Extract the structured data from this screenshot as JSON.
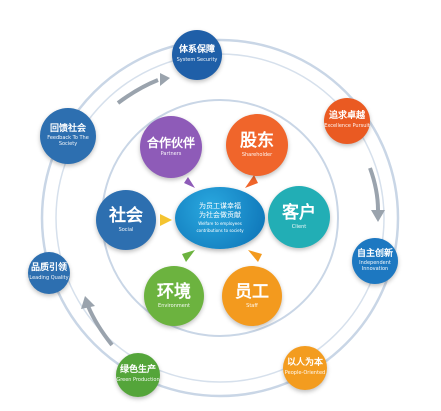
{
  "center": {
    "line1": "为员工谋幸福",
    "line2": "为社会做贡献",
    "en1": "Welfare to employees",
    "en2": "contributions to society"
  },
  "inner_nodes": [
    {
      "key": "partners",
      "cn": "合作伙伴",
      "en": "Partners",
      "color": "#8e5bb8"
    },
    {
      "key": "shareholder",
      "cn": "股东",
      "en": "Shareholder",
      "color": "#f0652b"
    },
    {
      "key": "client",
      "cn": "客户",
      "en": "Client",
      "color": "#22aeb5"
    },
    {
      "key": "staff",
      "cn": "员工",
      "en": "Staff",
      "color": "#f39a1e"
    },
    {
      "key": "environment",
      "cn": "环境",
      "en": "Environment",
      "color": "#6cb33f"
    },
    {
      "key": "social",
      "cn": "社会",
      "en": "Social",
      "color": "#2d6fb0"
    }
  ],
  "outer_nodes": [
    {
      "key": "system-security",
      "cn": "体系保障",
      "en": "System Security",
      "color": "#1f5fa8"
    },
    {
      "key": "excellence-pursuit",
      "cn": "追求卓越",
      "en": "Excellence Pursuit",
      "color": "#ea5a22"
    },
    {
      "key": "innovation",
      "cn": "自主创新",
      "en": "Independent Innovation",
      "color": "#1d78c1"
    },
    {
      "key": "people-oriented",
      "cn": "以人为本",
      "en": "People-Oriented",
      "color": "#f39c1f"
    },
    {
      "key": "green-production",
      "cn": "绿色生产",
      "en": "Green Production",
      "color": "#54a53a"
    },
    {
      "key": "leading-quality",
      "cn": "品质引领",
      "en": "Leading Quality",
      "color": "#2d6fb0"
    },
    {
      "key": "feedback-society",
      "cn": "回馈社会",
      "en": "Feedback To The Society",
      "color": "#2d6fb0"
    }
  ],
  "colors": {
    "ring": "#b9cbe0",
    "arrow": "#9aa3ad"
  }
}
